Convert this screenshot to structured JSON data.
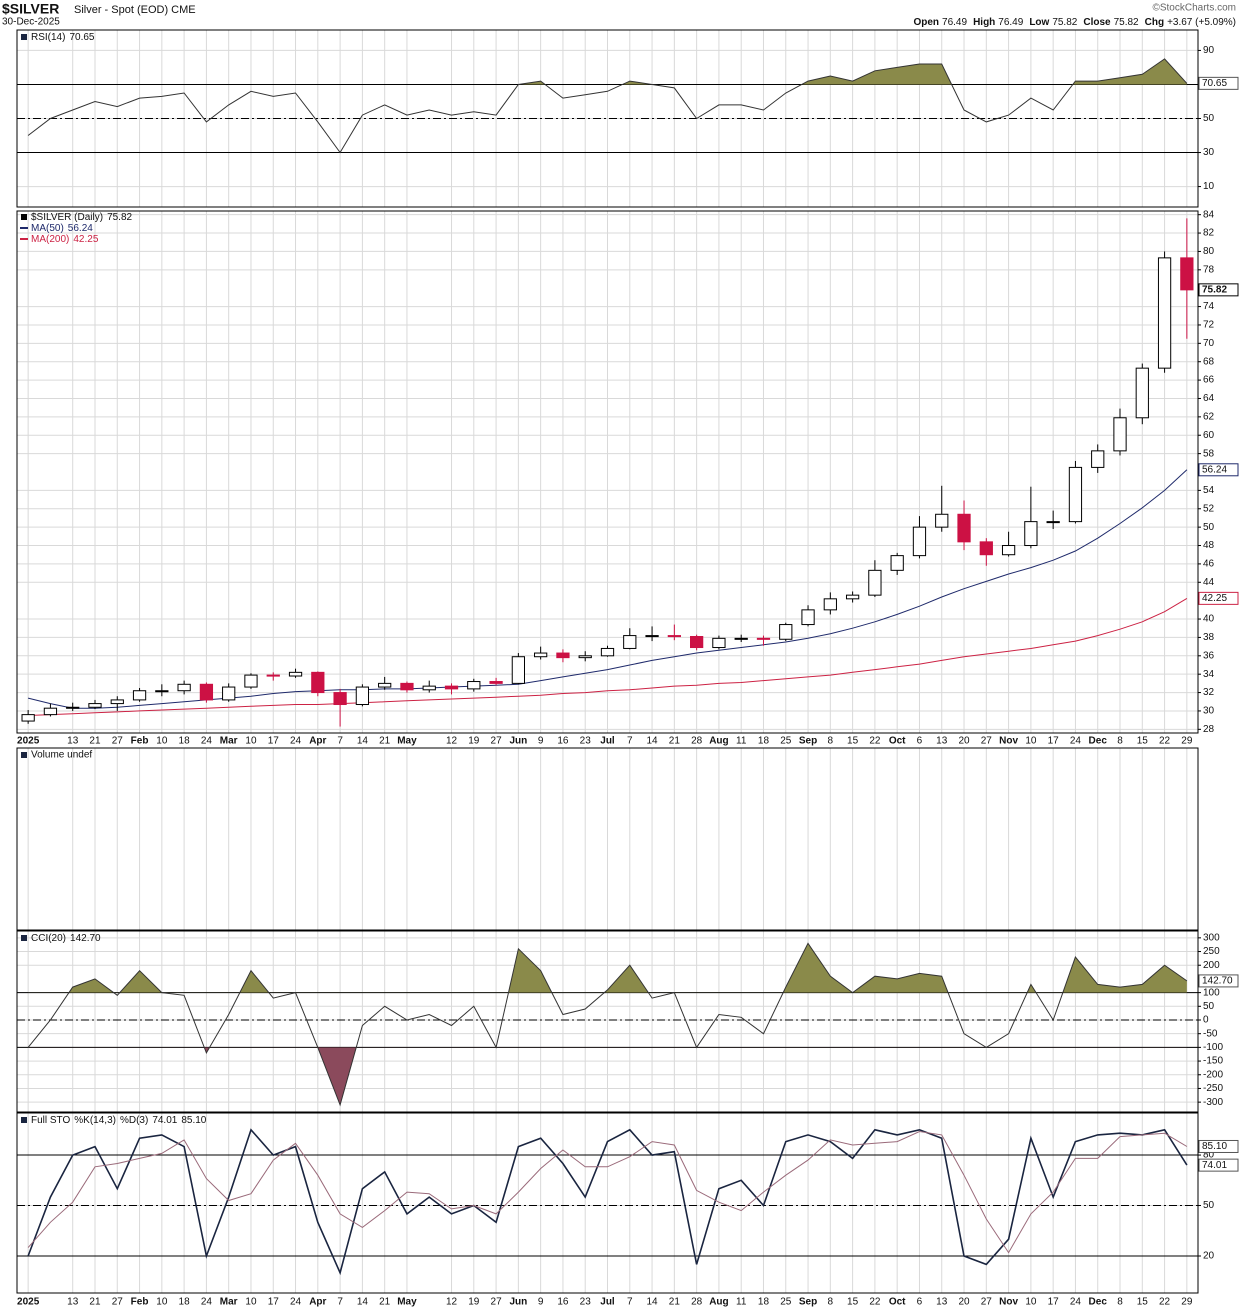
{
  "header": {
    "symbol": "$SILVER",
    "description": "Silver - Spot (EOD) CME",
    "date": "30-Dec-2025",
    "source": "©StockCharts.com",
    "quote": [
      {
        "label": "Open",
        "value": "76.49"
      },
      {
        "label": "High",
        "value": "76.49"
      },
      {
        "label": "Low",
        "value": "75.82"
      },
      {
        "label": "Close",
        "value": "75.82"
      },
      {
        "label": "Chg",
        "value": "+3.67 (+5.09%)"
      }
    ]
  },
  "chart_data": [
    {
      "type": "line",
      "ylim": [
        -2,
        102
      ],
      "yticks": [
        90,
        50,
        30,
        10
      ],
      "reference_lines": [
        70,
        50,
        30
      ],
      "reference_styles": [
        "solid",
        "dashdot",
        "solid"
      ],
      "fill_above": 70,
      "fill_above_color": "#8a8a4a",
      "series": [
        {
          "name": "RSI(14)",
          "color": "#333333",
          "last_label": "70.65",
          "values": [
            40,
            50,
            55,
            60,
            57,
            62,
            63,
            65,
            48,
            58,
            66,
            63,
            65,
            48,
            30,
            52,
            58,
            52,
            55,
            52,
            54,
            52,
            70,
            72,
            62,
            64,
            66,
            72,
            70,
            68,
            50,
            58,
            58,
            55,
            65,
            72,
            75,
            72,
            78,
            80,
            82,
            82,
            55,
            48,
            52,
            62,
            55,
            72,
            72,
            74,
            76,
            85,
            70.65
          ]
        }
      ]
    },
    {
      "type": "candlestick",
      "ylim": [
        27.6,
        84.4
      ],
      "yticks": [
        84,
        82,
        80,
        78,
        74,
        72,
        70,
        68,
        66,
        64,
        62,
        60,
        58,
        54,
        52,
        50,
        48,
        46,
        44,
        40,
        38,
        36,
        34,
        32,
        30,
        28
      ],
      "up_color": "#ffffff",
      "down_color": "#cc1144",
      "categories": [
        "2025",
        null,
        "13",
        "21",
        "27",
        "Feb",
        "10",
        "18",
        "24",
        "Mar",
        "10",
        "17",
        "24",
        "Apr",
        "7",
        "14",
        "21",
        "May",
        null,
        "12",
        "19",
        "27",
        "Jun",
        "9",
        "16",
        "23",
        "Jul",
        "7",
        "14",
        "21",
        "28",
        "Aug",
        "11",
        "18",
        "25",
        "Sep",
        "8",
        "15",
        "22",
        "Oct",
        "6",
        "13",
        "20",
        "27",
        "Nov",
        "10",
        "17",
        "24",
        "Dec",
        "8",
        "15",
        "22",
        "29"
      ],
      "series": [
        {
          "name": "$SILVER (Daily)",
          "color": "#000000",
          "last_label": "75.82",
          "open": [
            28.9,
            29.6,
            30.3,
            30.4,
            30.8,
            31.2,
            32.2,
            32.2,
            32.9,
            31.2,
            32.6,
            33.9,
            33.8,
            34.2,
            32.0,
            30.7,
            32.6,
            33.0,
            32.3,
            32.7,
            32.4,
            33.2,
            33.0,
            35.9,
            36.3,
            35.8,
            36.0,
            36.8,
            38.2,
            38.2,
            38.1,
            36.9,
            37.9,
            37.9,
            37.8,
            39.4,
            41.0,
            42.2,
            42.6,
            45.3,
            46.9,
            50.0,
            51.4,
            48.4,
            47.0,
            48.0,
            50.6,
            50.6,
            56.5,
            58.3,
            61.9,
            67.3,
            79.3
          ],
          "high": [
            30.1,
            30.8,
            30.9,
            31.2,
            31.6,
            32.5,
            32.9,
            33.3,
            33.1,
            33.0,
            34.1,
            34.2,
            34.6,
            34.3,
            32.4,
            32.9,
            33.7,
            33.2,
            33.3,
            33.0,
            33.5,
            33.6,
            36.3,
            37.0,
            36.7,
            36.5,
            37.1,
            39.0,
            39.2,
            39.4,
            38.3,
            38.2,
            38.3,
            38.2,
            39.6,
            41.5,
            42.9,
            43.0,
            46.4,
            47.2,
            51.2,
            54.5,
            52.9,
            48.8,
            49.5,
            54.4,
            51.8,
            57.2,
            59.0,
            62.9,
            67.8,
            80.0,
            83.6
          ],
          "low": [
            28.6,
            29.4,
            30.0,
            30.2,
            30.0,
            31.0,
            31.6,
            31.8,
            30.9,
            31.0,
            32.4,
            33.3,
            33.6,
            31.6,
            28.3,
            30.5,
            32.3,
            32.0,
            32.0,
            31.8,
            32.1,
            32.8,
            32.9,
            35.6,
            35.3,
            35.4,
            35.9,
            36.7,
            37.6,
            37.7,
            36.6,
            36.7,
            37.5,
            37.1,
            37.6,
            39.2,
            40.5,
            41.8,
            42.4,
            44.8,
            46.6,
            49.5,
            47.5,
            45.8,
            46.8,
            47.7,
            49.8,
            50.4,
            55.9,
            57.8,
            61.2,
            66.8,
            70.5
          ],
          "close": [
            29.6,
            30.3,
            30.4,
            30.8,
            31.2,
            32.2,
            32.2,
            32.9,
            31.2,
            32.6,
            33.9,
            33.8,
            34.2,
            32.0,
            30.7,
            32.6,
            33.0,
            32.3,
            32.7,
            32.4,
            33.2,
            33.0,
            35.9,
            36.3,
            35.8,
            36.0,
            36.8,
            38.2,
            38.2,
            38.1,
            36.9,
            37.9,
            37.9,
            37.8,
            39.4,
            41.0,
            42.2,
            42.6,
            45.3,
            46.9,
            50.0,
            51.4,
            48.4,
            47.0,
            48.0,
            50.6,
            50.6,
            56.5,
            58.3,
            61.9,
            67.3,
            79.3,
            75.82
          ]
        },
        {
          "name": "MA(50)",
          "color": "#1f2a6b",
          "last_label": "56.24",
          "values": [
            31.4,
            30.8,
            30.3,
            30.3,
            30.4,
            30.6,
            30.8,
            31.0,
            31.2,
            31.4,
            31.6,
            31.9,
            32.1,
            32.2,
            32.3,
            32.3,
            32.4,
            32.4,
            32.5,
            32.6,
            32.7,
            32.8,
            32.9,
            33.3,
            33.7,
            34.1,
            34.5,
            35.0,
            35.5,
            35.9,
            36.3,
            36.6,
            36.9,
            37.2,
            37.5,
            37.9,
            38.4,
            39.0,
            39.7,
            40.5,
            41.4,
            42.4,
            43.3,
            44.1,
            44.9,
            45.6,
            46.4,
            47.4,
            48.8,
            50.4,
            52.1,
            54.0,
            56.24
          ]
        },
        {
          "name": "MA(200)",
          "color": "#cc2244",
          "last_label": "42.25",
          "values": [
            29.5,
            29.6,
            29.7,
            29.8,
            29.9,
            30.0,
            30.1,
            30.2,
            30.3,
            30.4,
            30.5,
            30.6,
            30.7,
            30.7,
            30.8,
            30.9,
            31.0,
            31.1,
            31.2,
            31.3,
            31.4,
            31.5,
            31.6,
            31.7,
            31.9,
            32.0,
            32.2,
            32.3,
            32.5,
            32.7,
            32.8,
            33.0,
            33.1,
            33.3,
            33.5,
            33.7,
            33.9,
            34.2,
            34.5,
            34.8,
            35.1,
            35.5,
            35.9,
            36.2,
            36.5,
            36.8,
            37.2,
            37.6,
            38.2,
            38.9,
            39.7,
            40.8,
            42.25
          ]
        }
      ]
    },
    {
      "type": "bar",
      "title": "Volume undef"
    },
    {
      "type": "line",
      "ylim": [
        -336,
        325
      ],
      "yticks": [
        300,
        250,
        200,
        100,
        50,
        0,
        -50,
        -100,
        -150,
        -200,
        -250,
        -300
      ],
      "reference_lines": [
        100,
        0,
        -100
      ],
      "reference_styles": [
        "solid",
        "dashdot",
        "solid"
      ],
      "fill_above": 100,
      "fill_above_color": "#8a8a4a",
      "fill_below": -100,
      "fill_below_color": "#8b4a5c",
      "series": [
        {
          "name": "CCI(20)",
          "color": "#333333",
          "last_label": "142.70",
          "values": [
            -100,
            0,
            120,
            150,
            90,
            180,
            100,
            90,
            -120,
            20,
            180,
            80,
            100,
            -100,
            -310,
            -20,
            50,
            0,
            20,
            -20,
            50,
            -100,
            260,
            180,
            20,
            40,
            110,
            200,
            80,
            100,
            -100,
            20,
            10,
            -50,
            120,
            280,
            160,
            100,
            160,
            150,
            170,
            160,
            -50,
            -100,
            -50,
            130,
            0,
            230,
            130,
            120,
            130,
            200,
            142.7
          ]
        }
      ]
    },
    {
      "type": "line",
      "title": "Full STO",
      "ylim": [
        -2,
        105
      ],
      "yticks": [
        80,
        50,
        20
      ],
      "reference_lines": [
        80,
        50,
        20
      ],
      "reference_styles": [
        "solid",
        "dashdot",
        "solid"
      ],
      "series": [
        {
          "name": "%K(14,3)",
          "color": "#1a2540",
          "last_label": "74.01",
          "values": [
            20,
            55,
            80,
            85,
            60,
            90,
            92,
            85,
            20,
            55,
            95,
            80,
            85,
            40,
            10,
            60,
            70,
            45,
            55,
            45,
            50,
            40,
            85,
            90,
            75,
            55,
            88,
            95,
            80,
            82,
            15,
            60,
            65,
            50,
            88,
            92,
            88,
            78,
            95,
            92,
            95,
            90,
            20,
            15,
            30,
            90,
            55,
            88,
            92,
            93,
            92,
            95,
            74.01
          ]
        },
        {
          "name": "%D(3)",
          "color": "#9a6a7a",
          "last_label": "85.10",
          "values": [
            25,
            40,
            52,
            73,
            75,
            78,
            81,
            89,
            66,
            53,
            57,
            77,
            87,
            68,
            45,
            37,
            47,
            58,
            57,
            48,
            50,
            45,
            58,
            72,
            83,
            73,
            73,
            79,
            88,
            86,
            59,
            52,
            47,
            58,
            68,
            77,
            89,
            86,
            87,
            88,
            94,
            92,
            68,
            42,
            22,
            45,
            58,
            78,
            78,
            91,
            92,
            93,
            85.1
          ]
        }
      ]
    }
  ]
}
